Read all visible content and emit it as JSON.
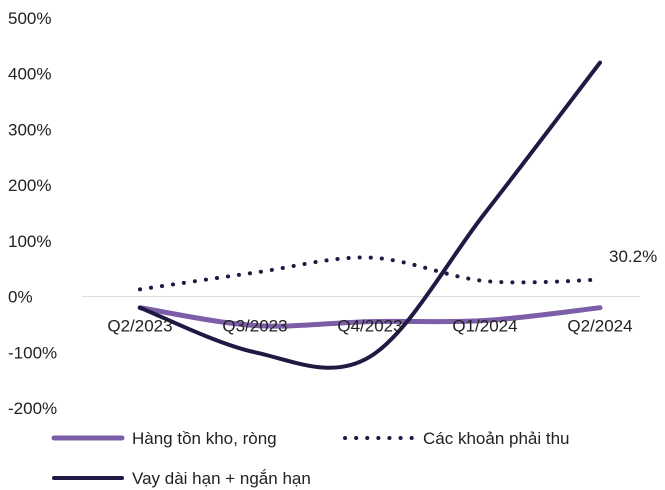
{
  "chart_data": {
    "type": "line",
    "title": "",
    "xlabel": "",
    "ylabel": "",
    "categories": [
      "Q2/2023",
      "Q3/2023",
      "Q4/2023",
      "Q1/2024",
      "Q2/2024"
    ],
    "ylim": [
      -200,
      500
    ],
    "yticks": [
      -200,
      -100,
      0,
      100,
      200,
      300,
      400,
      500
    ],
    "ytick_labels": [
      "-200%",
      "-100%",
      "0%",
      "100%",
      "200%",
      "300%",
      "400%",
      "500%"
    ],
    "grid": false,
    "legend_position": "bottom",
    "series": [
      {
        "name": "Hàng tồn kho, ròng",
        "values": [
          -20,
          -52,
          -45,
          -43,
          -20
        ],
        "color": "#7b5ea7",
        "style": "solid-thick"
      },
      {
        "name": "Các khoản phải thu",
        "values": [
          13,
          43,
          70,
          28,
          30.2
        ],
        "color": "#1e1a44",
        "style": "dotted"
      },
      {
        "name": "Vay dài hạn + ngắn hạn",
        "values": [
          -20,
          -100,
          -108,
          150,
          420
        ],
        "color": "#1e1a44",
        "style": "solid"
      }
    ],
    "annotations": [
      {
        "text": "30.2%",
        "series": 1,
        "point": 4
      }
    ]
  }
}
